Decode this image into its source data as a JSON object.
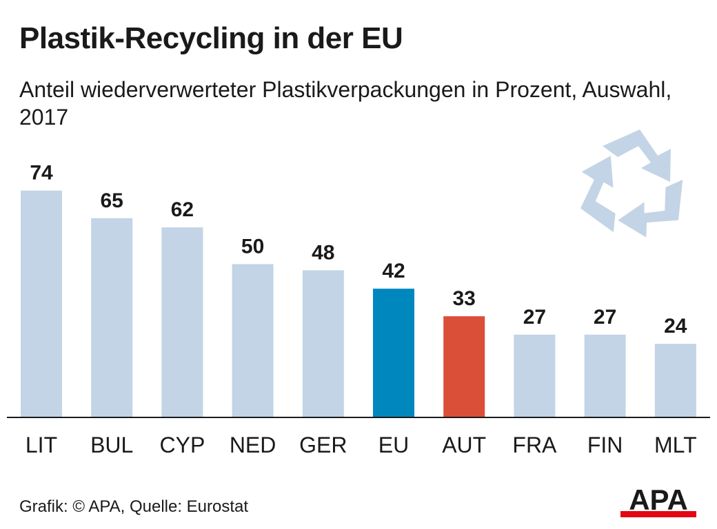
{
  "header": {
    "title": "Plastik-Recycling in der EU",
    "subtitle": "Anteil wiederverwerteter Plastikverpackungen in Prozent, Auswahl, 2017"
  },
  "chart_data": {
    "type": "bar",
    "title": "Plastik-Recycling in der EU",
    "subtitle": "Anteil wiederverwerteter Plastikverpackungen in Prozent, Auswahl, 2017",
    "categories": [
      "LIT",
      "BUL",
      "CYP",
      "NED",
      "GER",
      "EU",
      "AUT",
      "FRA",
      "FIN",
      "MLT"
    ],
    "values": [
      74,
      65,
      62,
      50,
      48,
      42,
      33,
      27,
      27,
      24
    ],
    "ylim": [
      0,
      100
    ],
    "grid": false,
    "xlabel": "",
    "ylabel": "",
    "colors": {
      "default": "#c2d4e6",
      "EU": "#0087bd",
      "AUT": "#d94f37"
    },
    "icon": "recycle-icon"
  },
  "footer": {
    "credit": "Grafik: © APA, Quelle: Eurostat"
  },
  "logo": {
    "text": "APA",
    "accent": "#e30613"
  }
}
